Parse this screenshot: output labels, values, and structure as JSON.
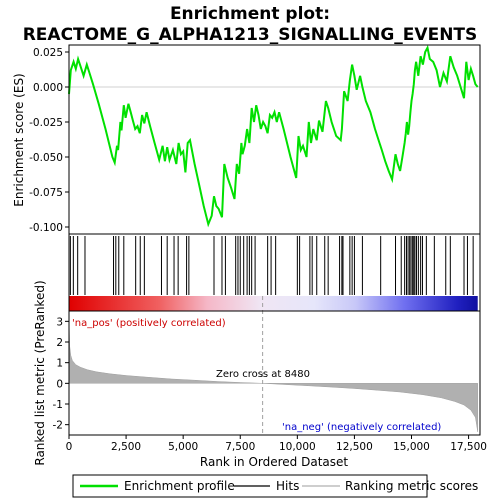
{
  "title_line1": "Enrichment plot:",
  "title_line2": "REACTOME_G_ALPHA1213_SIGNALLING_EVENTS",
  "colors": {
    "enrichment": "#00e000",
    "hits": "#000000",
    "metric": "#b0b0b0",
    "pos_label": "#cc0000",
    "neg_label": "#0000cc",
    "zero_line": "#a0a0a0"
  },
  "chart_data": [
    {
      "type": "line",
      "name": "Enrichment profile",
      "ylabel": "Enrichment score (ES)",
      "ylim": [
        -0.105,
        0.03
      ],
      "xlim": [
        0,
        18000
      ],
      "y_ticks": [
        0.025,
        0.0,
        -0.025,
        -0.05,
        -0.075,
        -0.1
      ],
      "y_tick_labels": [
        "0.025",
        "0.000",
        "-0.025",
        "-0.050",
        "-0.075",
        "-0.100"
      ],
      "grid": false,
      "x": [
        0,
        80,
        200,
        300,
        400,
        520,
        640,
        780,
        900,
        1050,
        1300,
        1600,
        1900,
        2000,
        2100,
        2150,
        2250,
        2300,
        2400,
        2480,
        2600,
        2700,
        2800,
        2900,
        3000,
        3100,
        3200,
        3300,
        3400,
        3550,
        3750,
        3950,
        4100,
        4200,
        4300,
        4400,
        4550,
        4700,
        4800,
        4900,
        5000,
        5100,
        5200,
        5300,
        5500,
        5700,
        5900,
        6100,
        6250,
        6350,
        6450,
        6550,
        6700,
        6800,
        6950,
        7100,
        7250,
        7350,
        7450,
        7550,
        7600,
        7700,
        7800,
        7900,
        8000,
        8100,
        8200,
        8300,
        8400,
        8500,
        8600,
        8700,
        8800,
        8900,
        9000,
        9100,
        9200,
        9400,
        9700,
        9950,
        10050,
        10150,
        10250,
        10400,
        10500,
        10600,
        10700,
        10850,
        10950,
        11100,
        11250,
        11350,
        11500,
        11700,
        11900,
        11950,
        12050,
        12200,
        12300,
        12400,
        12500,
        12600,
        12750,
        12850,
        13000,
        13200,
        13400,
        13600,
        13700,
        13850,
        14000,
        14150,
        14300,
        14400,
        14500,
        14600,
        14700,
        14750,
        14800,
        14850,
        14900,
        14950,
        15000,
        15050,
        15100,
        15150,
        15200,
        15300,
        15400,
        15500,
        15600,
        15700,
        15800,
        15950,
        16100,
        16250,
        16400,
        16550,
        16700,
        16850,
        17000,
        17150,
        17300,
        17400,
        17500,
        17600,
        17700,
        17800,
        17900
      ],
      "y": [
        -0.005,
        0.012,
        0.018,
        0.013,
        0.02,
        0.014,
        0.008,
        0.016,
        0.01,
        0.002,
        -0.012,
        -0.03,
        -0.05,
        -0.054,
        -0.042,
        -0.045,
        -0.025,
        -0.031,
        -0.013,
        -0.022,
        -0.012,
        -0.018,
        -0.024,
        -0.03,
        -0.028,
        -0.033,
        -0.02,
        -0.026,
        -0.018,
        -0.028,
        -0.04,
        -0.052,
        -0.042,
        -0.053,
        -0.043,
        -0.052,
        -0.045,
        -0.055,
        -0.04,
        -0.048,
        -0.046,
        -0.061,
        -0.04,
        -0.038,
        -0.055,
        -0.07,
        -0.085,
        -0.098,
        -0.092,
        -0.078,
        -0.085,
        -0.087,
        -0.093,
        -0.055,
        -0.065,
        -0.072,
        -0.08,
        -0.055,
        -0.062,
        -0.04,
        -0.048,
        -0.042,
        -0.03,
        -0.04,
        -0.015,
        -0.025,
        -0.013,
        -0.02,
        -0.03,
        -0.025,
        -0.028,
        -0.033,
        -0.02,
        -0.022,
        -0.018,
        -0.025,
        -0.018,
        -0.03,
        -0.05,
        -0.065,
        -0.035,
        -0.045,
        -0.042,
        -0.05,
        -0.025,
        -0.04,
        -0.03,
        -0.038,
        -0.024,
        -0.032,
        -0.01,
        -0.015,
        -0.025,
        -0.035,
        -0.038,
        -0.03,
        -0.003,
        -0.01,
        0.005,
        0.016,
        0.008,
        -0.002,
        0.008,
        0.0,
        -0.01,
        -0.018,
        -0.03,
        -0.04,
        -0.045,
        -0.053,
        -0.06,
        -0.066,
        -0.048,
        -0.055,
        -0.06,
        -0.05,
        -0.04,
        -0.033,
        -0.025,
        -0.034,
        -0.028,
        -0.018,
        -0.01,
        -0.005,
        0.002,
        0.012,
        0.018,
        0.008,
        0.022,
        0.016,
        0.025,
        0.028,
        0.02,
        0.018,
        0.012,
        0.0,
        0.01,
        0.004,
        0.022,
        0.014,
        0.008,
        0.0,
        -0.008,
        0.018,
        0.005,
        0.013,
        0.008,
        0.002,
        0.0
      ]
    },
    {
      "type": "scatter",
      "name": "Hits",
      "hit_positions": [
        60,
        190,
        380,
        700,
        1950,
        2050,
        2180,
        2400,
        2920,
        3120,
        3300,
        4050,
        4300,
        4600,
        4780,
        5150,
        5250,
        6350,
        6700,
        6850,
        7300,
        7400,
        7500,
        7650,
        7800,
        7900,
        8000,
        8150,
        8700,
        8850,
        9050,
        10000,
        10100,
        10550,
        10650,
        10850,
        11200,
        11350,
        11850,
        11950,
        12000,
        12300,
        12400,
        12500,
        12850,
        13650,
        14300,
        14550,
        14700,
        14780,
        14850,
        14920,
        14980,
        15050,
        15100,
        15150,
        15220,
        15300,
        15400,
        15480,
        15650,
        16000,
        16500,
        16700,
        17300,
        17450,
        17700
      ]
    },
    {
      "type": "area",
      "name": "Ranking metric scores",
      "xlabel": "Rank in Ordered Dataset",
      "ylabel": "Ranked list metric (PreRanked)",
      "ylim": [
        -2.5,
        3.5
      ],
      "y_ticks": [
        3,
        2,
        1,
        0,
        -1,
        -2
      ],
      "y_tick_labels": [
        "3",
        "2",
        "1",
        "0",
        "-1",
        "-2"
      ],
      "x_ticks": [
        0,
        2500,
        5000,
        7500,
        10000,
        12500,
        15000,
        17500
      ],
      "x_tick_labels": [
        "0",
        "2,500",
        "5,000",
        "7,500",
        "10,000",
        "12,500",
        "15,000",
        "17,500"
      ],
      "x": [
        0,
        30,
        80,
        150,
        300,
        500,
        800,
        1200,
        1800,
        2500,
        3500,
        4500,
        5500,
        6500,
        7500,
        8480,
        9500,
        10500,
        11500,
        12500,
        13500,
        14500,
        15500,
        16300,
        16900,
        17300,
        17600,
        17800,
        17900
      ],
      "y": [
        3.2,
        1.8,
        1.35,
        1.1,
        0.9,
        0.78,
        0.66,
        0.56,
        0.46,
        0.38,
        0.29,
        0.21,
        0.15,
        0.09,
        0.04,
        0.0,
        -0.06,
        -0.12,
        -0.18,
        -0.25,
        -0.33,
        -0.42,
        -0.55,
        -0.7,
        -0.88,
        -1.05,
        -1.3,
        -1.65,
        -2.35
      ],
      "zero_cross_label": "Zero cross at 8480",
      "pos_label": "'na_pos' (positively correlated)",
      "neg_label": "'na_neg' (negatively correlated)"
    }
  ],
  "legend": {
    "enrichment_label": "Enrichment profile",
    "hits_label": "Hits",
    "metric_label": "Ranking metric scores"
  }
}
